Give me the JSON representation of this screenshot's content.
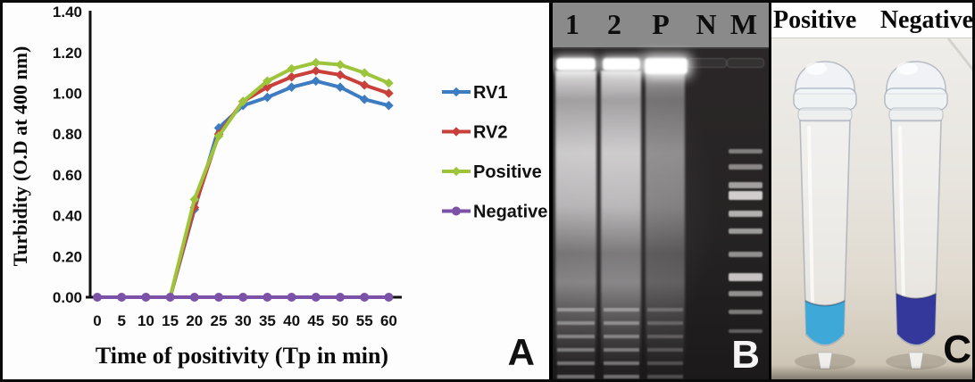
{
  "chart_data": {
    "type": "line",
    "title": "",
    "xlabel": "Time of positivity (Tp in min)",
    "ylabel": "Turbidity (O.D at 400 nm)",
    "x": [
      0,
      5,
      10,
      15,
      20,
      25,
      30,
      35,
      40,
      45,
      50,
      55,
      60
    ],
    "xlim": [
      0,
      60
    ],
    "ylim": [
      0,
      1.4
    ],
    "ytick_labels": [
      "0.00",
      "0.20",
      "0.40",
      "0.60",
      "0.80",
      "1.00",
      "1.20",
      "1.40"
    ],
    "grid": false,
    "legend_position": "right",
    "series": [
      {
        "name": "RV1",
        "color": "#3d7cc1",
        "marker": "diamond",
        "values": [
          0,
          0,
          0,
          0,
          0.43,
          0.83,
          0.94,
          0.98,
          1.03,
          1.06,
          1.03,
          0.97,
          0.94
        ]
      },
      {
        "name": "RV2",
        "color": "#c9403b",
        "marker": "diamond",
        "values": [
          0,
          0,
          0,
          0,
          0.44,
          0.8,
          0.96,
          1.03,
          1.08,
          1.11,
          1.09,
          1.04,
          1.0
        ]
      },
      {
        "name": "Positive",
        "color": "#9dc53c",
        "marker": "diamond",
        "values": [
          0,
          0,
          0,
          0,
          0.48,
          0.79,
          0.96,
          1.06,
          1.12,
          1.15,
          1.14,
          1.1,
          1.05
        ]
      },
      {
        "name": "Negative",
        "color": "#7c52a8",
        "marker": "circle",
        "values": [
          0,
          0,
          0,
          0,
          0,
          0,
          0,
          0,
          0,
          0,
          0,
          0,
          0
        ]
      }
    ]
  },
  "panel_a": {
    "label": "A"
  },
  "panel_b": {
    "label": "B",
    "lane_labels": [
      "1",
      "2",
      "P",
      "N",
      "M"
    ]
  },
  "panel_c": {
    "label": "C",
    "tube_labels": [
      "Positive",
      "Negative"
    ],
    "positive_liquid_color": "#3ea9d9",
    "negative_liquid_color": "#34389b"
  }
}
